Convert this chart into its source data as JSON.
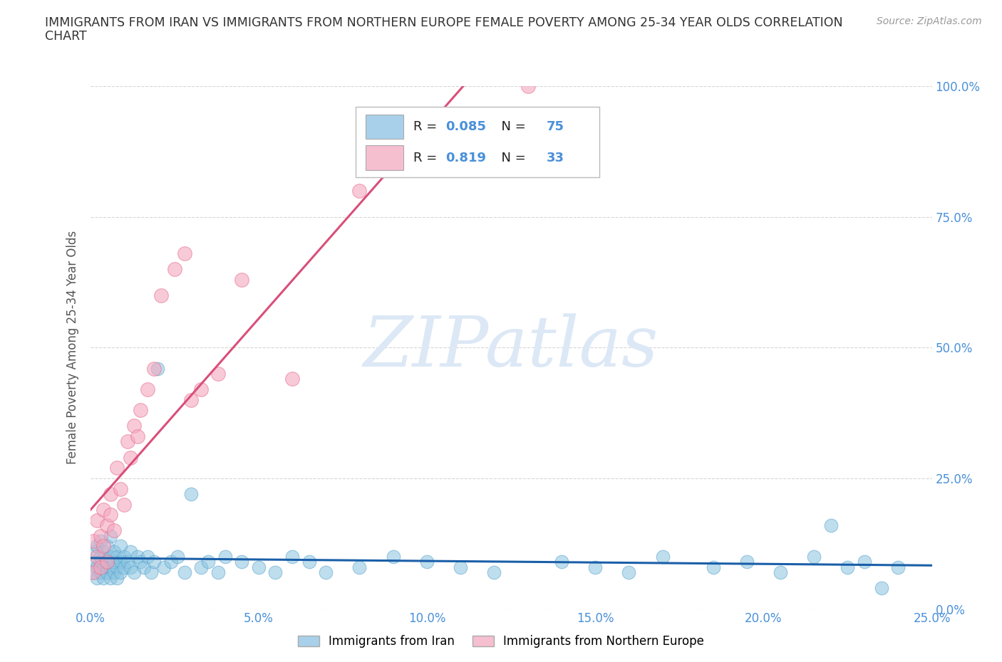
{
  "title_line1": "IMMIGRANTS FROM IRAN VS IMMIGRANTS FROM NORTHERN EUROPE FEMALE POVERTY AMONG 25-34 YEAR OLDS CORRELATION",
  "title_line2": "CHART",
  "source": "Source: ZipAtlas.com",
  "ylabel": "Female Poverty Among 25-34 Year Olds",
  "xmin": 0.0,
  "xmax": 0.25,
  "ymin": 0.0,
  "ymax": 1.0,
  "ytick_vals": [
    0.0,
    0.25,
    0.5,
    0.75,
    1.0
  ],
  "ytick_labels": [
    "0.0%",
    "25.0%",
    "50.0%",
    "75.0%",
    "100.0%"
  ],
  "xtick_vals": [
    0.0,
    0.05,
    0.1,
    0.15,
    0.2,
    0.25
  ],
  "xtick_labels": [
    "0.0%",
    "5.0%",
    "10.0%",
    "15.0%",
    "20.0%",
    "25.0%"
  ],
  "iran_color": "#89c4e1",
  "iran_edge_color": "#5ba3cc",
  "ne_color": "#f4a8be",
  "ne_edge_color": "#e87090",
  "iran_R": 0.085,
  "iran_N": 75,
  "ne_R": 0.819,
  "ne_N": 33,
  "iran_line_color": "#1a5fa8",
  "ne_line_color": "#d94f7a",
  "grid_color": "#cccccc",
  "grid_style": "--",
  "title_color": "#333333",
  "axis_label_color": "#555555",
  "tick_color": "#4a90d9",
  "legend_box_iran": "#a8d0ea",
  "legend_box_ne": "#f5bfd0",
  "watermark_text": "ZIPatlas",
  "watermark_color": "#dce8f5",
  "background_color": "#ffffff",
  "source_color": "#999999",
  "iran_scatter_x": [
    0.001,
    0.001,
    0.001,
    0.002,
    0.002,
    0.002,
    0.003,
    0.003,
    0.003,
    0.003,
    0.004,
    0.004,
    0.004,
    0.005,
    0.005,
    0.005,
    0.006,
    0.006,
    0.006,
    0.006,
    0.007,
    0.007,
    0.007,
    0.008,
    0.008,
    0.008,
    0.009,
    0.009,
    0.009,
    0.01,
    0.01,
    0.011,
    0.012,
    0.012,
    0.013,
    0.014,
    0.015,
    0.016,
    0.017,
    0.018,
    0.019,
    0.02,
    0.022,
    0.024,
    0.026,
    0.028,
    0.03,
    0.033,
    0.035,
    0.038,
    0.04,
    0.045,
    0.05,
    0.055,
    0.06,
    0.065,
    0.07,
    0.08,
    0.09,
    0.1,
    0.11,
    0.12,
    0.14,
    0.15,
    0.16,
    0.17,
    0.185,
    0.195,
    0.205,
    0.215,
    0.22,
    0.225,
    0.23,
    0.235,
    0.24
  ],
  "iran_scatter_y": [
    0.09,
    0.07,
    0.11,
    0.08,
    0.12,
    0.06,
    0.1,
    0.07,
    0.09,
    0.13,
    0.08,
    0.11,
    0.06,
    0.09,
    0.07,
    0.12,
    0.08,
    0.1,
    0.06,
    0.14,
    0.07,
    0.09,
    0.11,
    0.08,
    0.06,
    0.1,
    0.09,
    0.07,
    0.12,
    0.08,
    0.1,
    0.09,
    0.08,
    0.11,
    0.07,
    0.1,
    0.09,
    0.08,
    0.1,
    0.07,
    0.09,
    0.46,
    0.08,
    0.09,
    0.1,
    0.07,
    0.22,
    0.08,
    0.09,
    0.07,
    0.1,
    0.09,
    0.08,
    0.07,
    0.1,
    0.09,
    0.07,
    0.08,
    0.1,
    0.09,
    0.08,
    0.07,
    0.09,
    0.08,
    0.07,
    0.1,
    0.08,
    0.09,
    0.07,
    0.1,
    0.16,
    0.08,
    0.09,
    0.04,
    0.08
  ],
  "ne_scatter_x": [
    0.001,
    0.001,
    0.002,
    0.002,
    0.003,
    0.003,
    0.004,
    0.004,
    0.005,
    0.005,
    0.006,
    0.006,
    0.007,
    0.008,
    0.009,
    0.01,
    0.011,
    0.012,
    0.013,
    0.014,
    0.015,
    0.017,
    0.019,
    0.021,
    0.025,
    0.028,
    0.03,
    0.033,
    0.038,
    0.045,
    0.06,
    0.08,
    0.13
  ],
  "ne_scatter_y": [
    0.07,
    0.13,
    0.1,
    0.17,
    0.08,
    0.14,
    0.12,
    0.19,
    0.09,
    0.16,
    0.22,
    0.18,
    0.15,
    0.27,
    0.23,
    0.2,
    0.32,
    0.29,
    0.35,
    0.33,
    0.38,
    0.42,
    0.46,
    0.6,
    0.65,
    0.68,
    0.4,
    0.42,
    0.45,
    0.63,
    0.44,
    0.8,
    1.0
  ]
}
